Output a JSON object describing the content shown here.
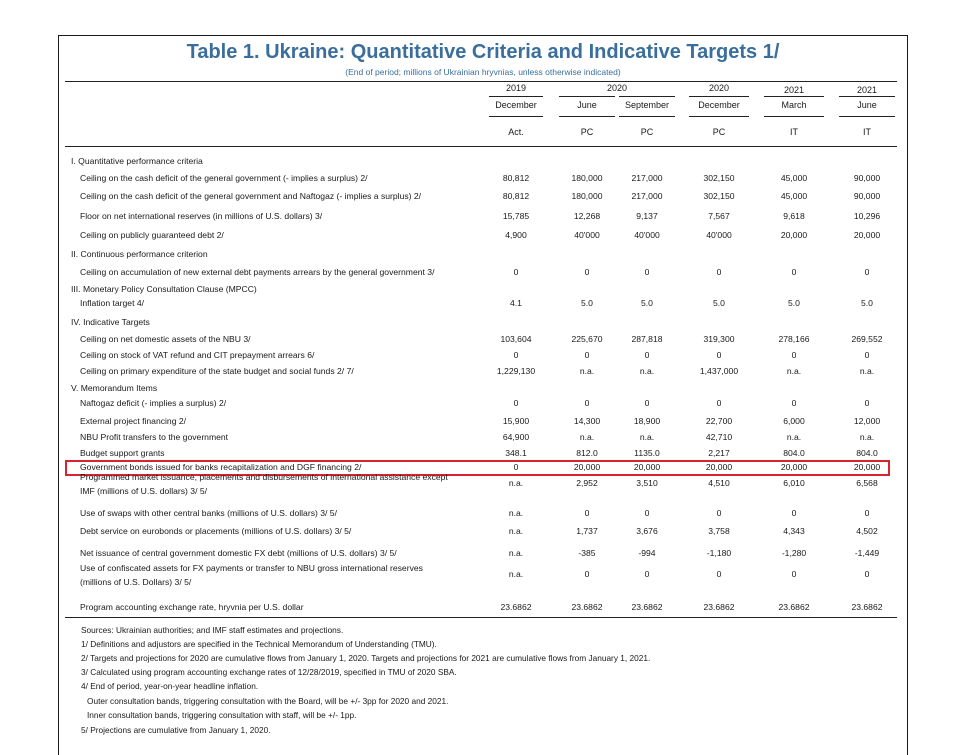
{
  "title": "Table 1. Ukraine: Quantitative Criteria and Indicative Targets 1/",
  "subtitle": "(End of period; millions of Ukrainian hryvnias, unless otherwise indicated)",
  "columns": [
    {
      "year": "2019",
      "period": "December",
      "type": "Act."
    },
    {
      "year": "",
      "period": "June",
      "type": "PC"
    },
    {
      "year": "",
      "period": "September",
      "type": "PC"
    },
    {
      "year": "2020",
      "period": "December",
      "type": "PC"
    },
    {
      "year": "2021",
      "period": "March",
      "type": "IT"
    },
    {
      "year": "2021",
      "period": "June",
      "type": "IT"
    }
  ],
  "year_2020_span": "2020",
  "rows": [
    {
      "label": "I. Quantitative performance criteria",
      "section": true,
      "values": []
    },
    {
      "label": "Ceiling on the cash deficit of the general government (- implies a surplus) 2/",
      "values": [
        "80,812",
        "180,000",
        "217,000",
        "302,150",
        "45,000",
        "90,000"
      ]
    },
    {
      "label": "Ceiling on the cash deficit of the general government and Naftogaz (- implies a surplus) 2/",
      "values": [
        "80,812",
        "180,000",
        "217,000",
        "302,150",
        "45,000",
        "90,000"
      ]
    },
    {
      "label": "Floor on net international reserves (in millions of U.S. dollars) 3/",
      "values": [
        "15,785",
        "12,268",
        "9,137",
        "7,567",
        "9,618",
        "10,296"
      ]
    },
    {
      "label": "Ceiling on publicly guaranteed debt 2/",
      "values": [
        "4,900",
        "40'000",
        "40'000",
        "40'000",
        "20,000",
        "20,000"
      ]
    },
    {
      "label": "II. Continuous performance criterion",
      "section": true,
      "values": []
    },
    {
      "label": "Ceiling on accumulation of new external debt payments arrears by the general government 3/",
      "values": [
        "0",
        "0",
        "0",
        "0",
        "0",
        "0"
      ]
    },
    {
      "label": "III. Monetary Policy Consultation Clause (MPCC)",
      "section": true,
      "values": []
    },
    {
      "label": "Inflation target 4/",
      "values": [
        "4.1",
        "5.0",
        "5.0",
        "5.0",
        "5.0",
        "5.0"
      ]
    },
    {
      "label": "IV. Indicative Targets",
      "section": true,
      "values": []
    },
    {
      "label": "Ceiling on net domestic assets of the NBU 3/",
      "values": [
        "103,604",
        "225,670",
        "287,818",
        "319,300",
        "278,166",
        "269,552"
      ]
    },
    {
      "label": "Ceiling on stock of VAT refund and CIT prepayment arrears 6/",
      "values": [
        "0",
        "0",
        "0",
        "0",
        "0",
        "0"
      ]
    },
    {
      "label": "Ceiling on primary expenditure of the state budget and social funds 2/ 7/",
      "values": [
        "1,229,130",
        "n.a.",
        "n.a.",
        "1,437,000",
        "n.a.",
        "n.a."
      ]
    },
    {
      "label": "V. Memorandum Items",
      "section": true,
      "values": []
    },
    {
      "label": "Naftogaz deficit (- implies a surplus) 2/",
      "values": [
        "0",
        "0",
        "0",
        "0",
        "0",
        "0"
      ]
    },
    {
      "label": "External project financing  2/",
      "values": [
        "15,900",
        "14,300",
        "18,900",
        "22,700",
        "6,000",
        "12,000"
      ]
    },
    {
      "label": "NBU Profit transfers to the government",
      "values": [
        "64,900",
        "n.a.",
        "n.a.",
        "42,710",
        "n.a.",
        "n.a."
      ]
    },
    {
      "label": "Budget support grants",
      "values": [
        "348.1",
        "812.0",
        "1135.0",
        "2,217",
        "804.0",
        "804.0"
      ]
    },
    {
      "label": "Government bonds issued for banks recapitalization and DGF financing 2/",
      "values": [
        "0",
        "20,000",
        "20,000",
        "20,000",
        "20,000",
        "20,000"
      ],
      "highlight": true
    },
    {
      "label": "Programmed market issuance, placements and disbursements of international assistance except",
      "label2": "IMF (millions of U.S. dollars) 3/ 5/",
      "values": [
        "n.a.",
        "2,952",
        "3,510",
        "4,510",
        "6,010",
        "6,568"
      ]
    },
    {
      "label": "Use of swaps with other central banks (millions of U.S. dollars) 3/ 5/",
      "values": [
        "n.a.",
        "0",
        "0",
        "0",
        "0",
        "0"
      ]
    },
    {
      "label": "Debt service on eurobonds or placements (millions of U.S. dollars) 3/ 5/",
      "values": [
        "n.a.",
        "1,737",
        "3,676",
        "3,758",
        "4,343",
        "4,502"
      ]
    },
    {
      "label": "Net issuance of central government domestic FX debt (millions of U.S. dollars) 3/ 5/",
      "values": [
        "n.a.",
        "-385",
        "-994",
        "-1,180",
        "-1,280",
        "-1,449"
      ]
    },
    {
      "label": "Use of confiscated assets for FX payments or transfer to NBU gross international reserves",
      "label2": "(millions of U.S. Dollars) 3/ 5/",
      "values": [
        "n.a.",
        "0",
        "0",
        "0",
        "0",
        "0"
      ]
    },
    {
      "label": "Program accounting exchange rate, hryvnia per U.S. dollar",
      "values": [
        "23.6862",
        "23.6862",
        "23.6862",
        "23.6862",
        "23.6862",
        "23.6862"
      ]
    }
  ],
  "notes": [
    "Sources: Ukrainian authorities; and IMF staff estimates and projections.",
    "1/ Definitions and adjustors are specified in the Technical Memorandum of Understanding (TMU).",
    "2/ Targets and projections for 2020 are cumulative flows from January 1, 2020. Targets and projections for 2021 are cumulative flows from January 1, 2021.",
    "3/ Calculated using program accounting exchange rates of 12/28/2019, specified in TMU of 2020 SBA.",
    "4/ End of period, year-on-year headline inflation.",
    "   Outer consultation bands, triggering consultation with the Board, will be +/- 3pp for 2020 and 2021.",
    "   Inner consultation bands, triggering consultation with staff, will be +/- 1pp.",
    "5/ Projections are cumulative from January 1, 2020."
  ],
  "colors": {
    "title": "#3a6e9c",
    "highlight": "#d9232e"
  }
}
